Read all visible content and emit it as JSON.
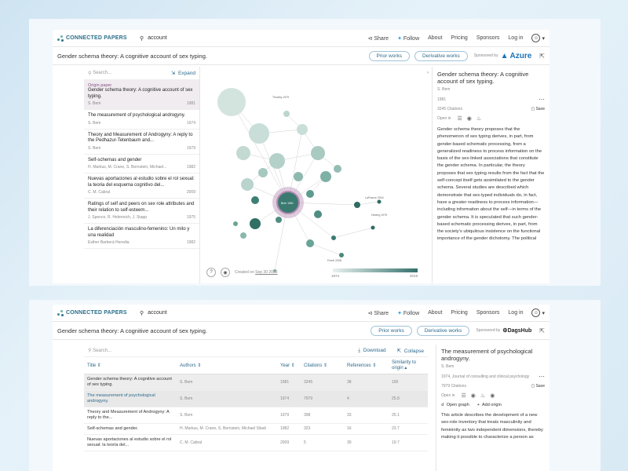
{
  "colors": {
    "teal": "#3f8f8b",
    "link": "#2d6a8c",
    "logo": "#2a6f8a",
    "purple": "#8a4f8a"
  },
  "nav": {
    "brand": "CONNECTED PAPERS",
    "search_value": "account",
    "links": [
      "Share",
      "Follow",
      "About",
      "Pricing",
      "Sponsors",
      "Log in"
    ]
  },
  "top": {
    "paper_title": "Gender schema theory: A cognitive account of sex typing.",
    "prior_works": "Prior works",
    "derivative_works": "Derivative works",
    "sponsored_by": "Sponsored by",
    "sponsor": "Azure",
    "search_placeholder": "Search...",
    "expand": "Expand",
    "papers": [
      {
        "label": "Origin paper",
        "title": "Gender schema theory: A cognitive account of sex typing.",
        "authors": "S. Bem",
        "year": "1981"
      },
      {
        "title": "The measurement of psychological androgyny.",
        "authors": "S. Bem",
        "year": "1974"
      },
      {
        "title": "Theory and Measurement of Androgyny: A reply to the Pedhazur-Tetenbaum and...",
        "authors": "S. Bem",
        "year": "1979"
      },
      {
        "title": "Self-schemas and gender",
        "authors": "H. Markus, M. Crane, S. Bernstein, Michael...",
        "year": "1982"
      },
      {
        "title": "Nuevas aportaciones al estudio sobre el rol sexual: la teoria del esquema cognitivo del...",
        "authors": "C. M. Cabral",
        "year": "2009"
      },
      {
        "title": "Ratings of self and peers on sex role attributes and their relation to self-esteem...",
        "authors": "J. Spence, R. Helmreich, J. Stapp",
        "year": "1975"
      },
      {
        "title": "La diferenciación masculino-femenino: Un mito y una realidad",
        "authors": "Esther Barberá Heredia",
        "year": "1982"
      }
    ],
    "graph": {
      "created_on_label": "Created on",
      "created_on": "Sep 30 2022",
      "year_min": "1974",
      "year_max": "2019",
      "node_labels": [
        "Timothy 1979",
        "Bem 1981",
        "LaFrance 2016",
        "Hoberg 1979",
        "Ferrel 2008"
      ]
    },
    "detail": {
      "title": "Gender schema theory: A cognitive account of sex typing.",
      "authors": "S. Bem",
      "year": "1981",
      "citations": "3245 Citations",
      "save": "Save",
      "open_in": "Open in",
      "abstract": "Gender schema theory proposes that the phenomenon of sex typing derives, in part, from gender-based schematic processing, from a generalized readiness to process information on the basis of the sex-linked associations that constitute the gender schema. In particular, the theory proposes that sex typing results from the fact that the self-concept itself gets assimilated to the gender schema. Several studies are described which demonstrate that sex-typed individuals do, in fact, have a greater readiness to process information—including information about the self—in terms of the gender schema. It is speculated that such gender-based schematic processing derives, in part, from the society's ubiquitous insistence on the functional importance of the gender dichotomy. The political"
    }
  },
  "bottom": {
    "paper_title": "Gender schema theory: A cognitive account of sex typing.",
    "prior_works": "Prior works",
    "derivative_works": "Derivative works",
    "sponsored_by": "Sponsored by",
    "sponsor": "DagsHub",
    "search_placeholder": "Search...",
    "download": "Download",
    "collapse": "Collapse",
    "columns": [
      "Title",
      "Authors",
      "Year",
      "Citations",
      "References",
      "Similarity to origin"
    ],
    "rows": [
      [
        "Gender schema theory: A cognitive account of sex typing.",
        "S. Bem",
        "1981",
        "3245",
        "38",
        "100"
      ],
      [
        "The measurement of psychological androgyny.",
        "S. Bem",
        "1974",
        "7979",
        "4",
        "25.8"
      ],
      [
        "Theory and Measurement of Androgyny: A reply to the...",
        "S. Bem",
        "1979",
        "398",
        "33",
        "25.1"
      ],
      [
        "Self-schemas and gender.",
        "H. Markus, M. Crane, S. Bernstein, Michael Siladi",
        "1982",
        "323",
        "16",
        "23.7"
      ],
      [
        "Nuevas aportaciones al estudio sobre el rol sexual: la teoría del...",
        "C. M. Cabral",
        "2009",
        "5",
        "30",
        "19.7"
      ]
    ],
    "detail": {
      "title": "The measurement of psychological androgyny.",
      "authors": "S. Bem",
      "journal": "1974, Journal of consulting and clinical psychology",
      "citations": "7979 Citations",
      "save": "Save",
      "open_in": "Open in",
      "open_graph": "Open graph",
      "add_origin": "Add origin",
      "abstract": "This article describes the development of a new sex-role inventory that treats masculinity and femininity as two independent dimensions, thereby making it possible to characterize a person as"
    }
  }
}
